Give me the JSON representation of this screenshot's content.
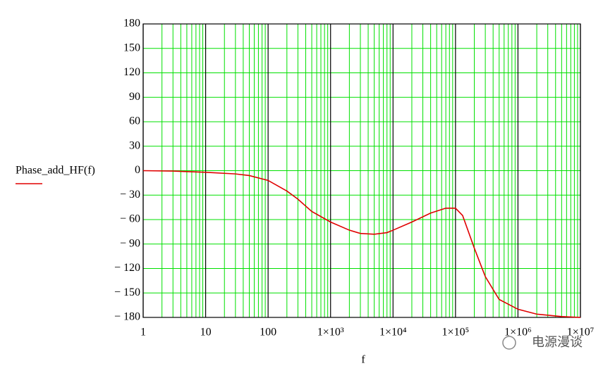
{
  "chart_data": {
    "type": "line",
    "x_label": "f",
    "xscale": "log",
    "xlim": [
      1,
      10000000
    ],
    "xticks": [
      1,
      10,
      100,
      {
        "value": 1000,
        "label": "1×10³"
      },
      {
        "value": 10000,
        "label": "1×10⁴"
      },
      {
        "value": 100000,
        "label": "1×10⁵"
      },
      {
        "value": 1000000,
        "label": "1×10⁶"
      },
      {
        "value": 10000000,
        "label": "1×10⁷"
      }
    ],
    "ylim": [
      -180,
      180
    ],
    "yticks": [
      {
        "value": -180,
        "label": "− 180"
      },
      {
        "value": -150,
        "label": "− 150"
      },
      {
        "value": -120,
        "label": "− 120"
      },
      {
        "value": -90,
        "label": "− 90"
      },
      {
        "value": -60,
        "label": "− 60"
      },
      {
        "value": -30,
        "label": "− 30"
      },
      0,
      30,
      60,
      90,
      120,
      150,
      180
    ],
    "grid": true,
    "grid_color": "#00e000",
    "major_grid_color": "#000000",
    "x": [
      1,
      3,
      10,
      30,
      50,
      100,
      200,
      300,
      500,
      1000,
      2000,
      3000,
      5000,
      8000,
      10000,
      20000,
      40000,
      70000,
      100000,
      130000,
      200000,
      300000,
      500000,
      1000000,
      2000000,
      5000000,
      10000000
    ],
    "series": [
      {
        "name": "Phase_add_HF(f)",
        "color": "#e00000",
        "values": [
          0,
          -0.5,
          -2,
          -4,
          -6,
          -12,
          -25,
          -35,
          -50,
          -63,
          -73,
          -77,
          -78,
          -76,
          -73,
          -63,
          -52,
          -46,
          -46,
          -55,
          -95,
          -130,
          -158,
          -170,
          -176,
          -179,
          -180
        ]
      }
    ]
  },
  "watermark": "电源漫谈"
}
